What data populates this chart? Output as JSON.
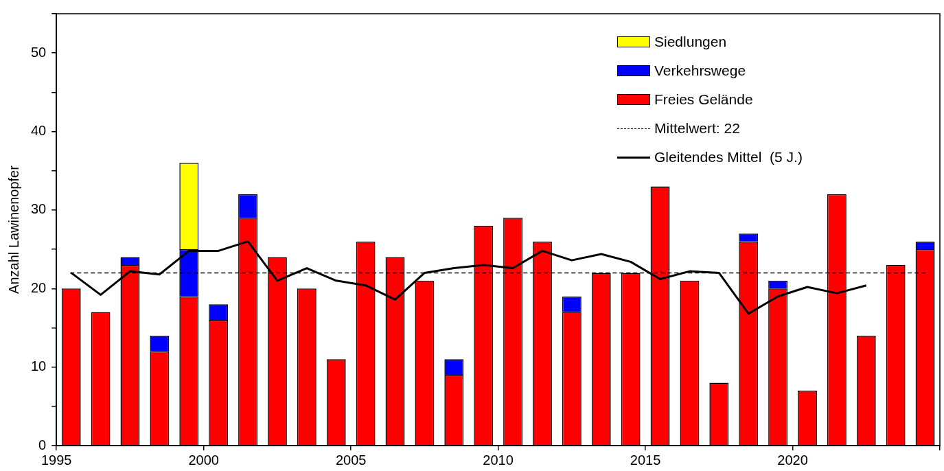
{
  "chart_data": {
    "type": "bar",
    "stacked": true,
    "ylabel": "Anzahl Lawinenopfer",
    "x": [
      1995.5,
      1996.5,
      1997.5,
      1998.5,
      1999.5,
      2000.5,
      2001.5,
      2002.5,
      2003.5,
      2004.5,
      2005.5,
      2006.5,
      2007.5,
      2008.5,
      2009.5,
      2010.5,
      2011.5,
      2012.5,
      2013.5,
      2014.5,
      2015.5,
      2016.5,
      2017.5,
      2018.5,
      2019.5,
      2020.5,
      2021.5,
      2022.5,
      2023.5,
      2024.5
    ],
    "series": [
      {
        "name": "Freies Gelände",
        "color": "#ff0000",
        "values": [
          20,
          17,
          23,
          12,
          19,
          16,
          29,
          24,
          20,
          11,
          26,
          24,
          21,
          9,
          28,
          29,
          26,
          17,
          22,
          22,
          33,
          21,
          8,
          26,
          20,
          7,
          32,
          14,
          23,
          25
        ]
      },
      {
        "name": "Verkehrswege",
        "color": "#0000ff",
        "values": [
          null,
          null,
          1,
          2,
          6,
          2,
          3,
          null,
          null,
          null,
          null,
          null,
          null,
          2,
          null,
          null,
          null,
          2,
          null,
          null,
          null,
          null,
          null,
          1,
          1,
          null,
          null,
          null,
          null,
          1
        ]
      },
      {
        "name": "Siedlungen",
        "color": "#ffff00",
        "values": [
          null,
          null,
          null,
          null,
          11,
          null,
          null,
          null,
          null,
          null,
          null,
          null,
          null,
          null,
          null,
          null,
          null,
          null,
          null,
          null,
          null,
          null,
          null,
          null,
          null,
          null,
          null,
          null,
          null,
          null
        ]
      },
      {
        "name": "Gleitendes Mittel  (5 J.)",
        "type": "line",
        "color": "#000000",
        "marker": "none",
        "line_style": "solid",
        "x": [
          1995.5,
          1996.5,
          1997.5,
          1998.5,
          1999.5,
          2000.5,
          2001.5,
          2002.5,
          2003.5,
          2004.5,
          2005.5,
          2006.5,
          2007.5,
          2008.5,
          2009.5,
          2010.5,
          2011.5,
          2012.5,
          2013.5,
          2014.5,
          2015.5,
          2016.5,
          2017.5,
          2018.5,
          2019.5,
          2020.5,
          2021.5,
          2022.5
        ],
        "values": [
          22,
          19.2,
          22.2,
          21.8,
          24.8,
          24.8,
          26,
          21,
          22.6,
          21,
          20.4,
          18.6,
          22,
          22.6,
          23,
          22.6,
          24.8,
          23.6,
          24.4,
          23.4,
          21.2,
          22.2,
          22,
          16.8,
          19,
          20.2,
          19.4,
          20.4
        ]
      }
    ],
    "ref_lines": [
      {
        "axis": "y",
        "value": 22,
        "label": "Mittelwert: 22",
        "color": "#000000",
        "line_style": "dashed"
      }
    ],
    "xlim": [
      1995,
      2025
    ],
    "xticks": [
      1995,
      2000,
      2005,
      2010,
      2015,
      2020,
      {
        "value": 2025,
        "label": null
      }
    ],
    "ylim": [
      0,
      55
    ],
    "yticks": [
      0,
      {
        "value": 5,
        "label": null
      },
      10,
      {
        "value": 15,
        "label": null
      },
      20,
      {
        "value": 25,
        "label": null
      },
      30,
      {
        "value": 35,
        "label": null
      },
      40,
      {
        "value": 45,
        "label": null
      },
      50,
      {
        "value": 55,
        "label": null
      }
    ],
    "grid": false,
    "legend": "top right"
  }
}
